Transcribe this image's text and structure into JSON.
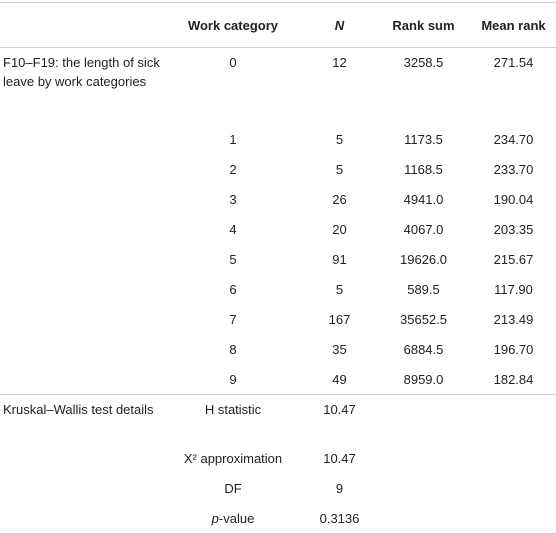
{
  "table": {
    "headers": [
      "",
      "Work category",
      "N",
      "Rank sum",
      "Mean rank"
    ],
    "group1_label": "F10–F19: the length of sick leave by work categories",
    "rows": [
      {
        "cat": "0",
        "n": "12",
        "rank_sum": "3258.5",
        "mean_rank": "271.54"
      },
      {
        "cat": "1",
        "n": "5",
        "rank_sum": "1173.5",
        "mean_rank": "234.70"
      },
      {
        "cat": "2",
        "n": "5",
        "rank_sum": "1168.5",
        "mean_rank": "233.70"
      },
      {
        "cat": "3",
        "n": "26",
        "rank_sum": "4941.0",
        "mean_rank": "190.04"
      },
      {
        "cat": "4",
        "n": "20",
        "rank_sum": "4067.0",
        "mean_rank": "203.35"
      },
      {
        "cat": "5",
        "n": "91",
        "rank_sum": "19626.0",
        "mean_rank": "215.67"
      },
      {
        "cat": "6",
        "n": "5",
        "rank_sum": "589.5",
        "mean_rank": "117.90"
      },
      {
        "cat": "7",
        "n": "167",
        "rank_sum": "35652.5",
        "mean_rank": "213.49"
      },
      {
        "cat": "8",
        "n": "35",
        "rank_sum": "6884.5",
        "mean_rank": "196.70"
      },
      {
        "cat": "9",
        "n": "49",
        "rank_sum": "8959.0",
        "mean_rank": "182.84"
      }
    ],
    "group2_label": "Kruskal–Wallis test details",
    "stats": [
      {
        "label": "H statistic",
        "value": "10.47"
      },
      {
        "label": "X² approximation",
        "value": "10.47"
      },
      {
        "label": "DF",
        "value": "9"
      },
      {
        "label_italic": "p",
        "label_rest": "-value",
        "value": "0.3136"
      }
    ]
  }
}
